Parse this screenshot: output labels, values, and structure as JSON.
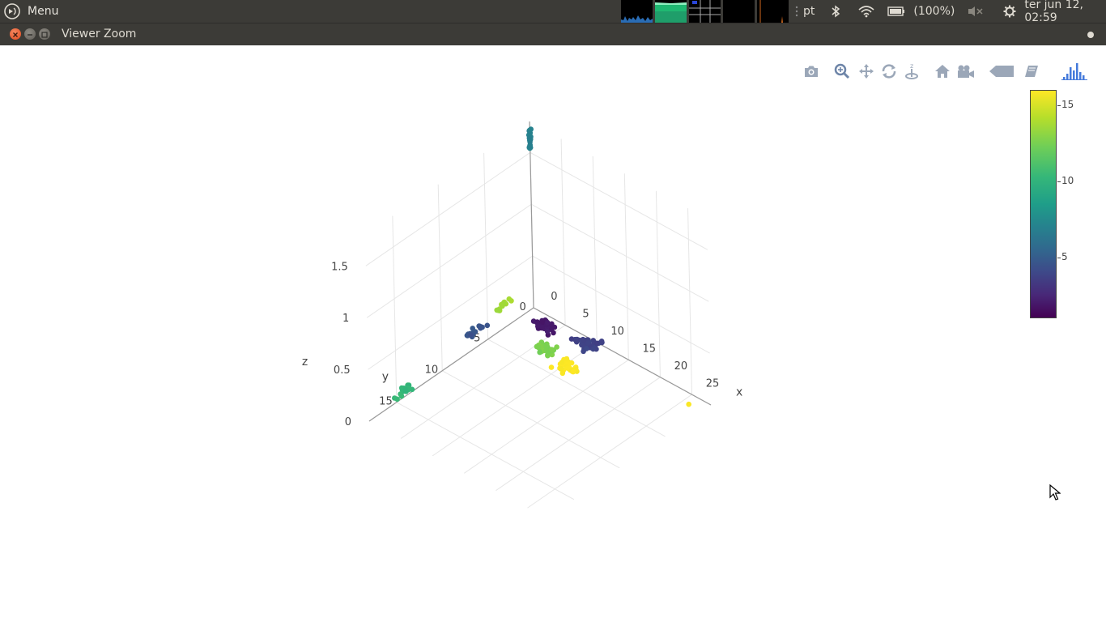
{
  "topbar": {
    "menu_label": "Menu",
    "keyboard_layout": "pt",
    "battery_text": "(100%)",
    "datetime": "ter jun 12, 02:59"
  },
  "window": {
    "title": "Viewer Zoom"
  },
  "modebar": {
    "icons": [
      "camera-icon",
      "zoom-icon",
      "pan-icon",
      "orbit-rotation-icon",
      "turntable-rotation-icon",
      "reset-camera-home-icon",
      "reset-camera-last-save-icon",
      "hover-closest-icon",
      "toggle-spike-lines-icon",
      "plotly-logo-icon"
    ]
  },
  "colorbar": {
    "ticks": [
      "15",
      "10",
      "5"
    ],
    "colorscale": [
      "#440154",
      "#482878",
      "#3e4989",
      "#31688e",
      "#26828e",
      "#1f9e89",
      "#35b779",
      "#6ece58",
      "#b5de2b",
      "#fde725"
    ]
  },
  "chart_data": {
    "type": "scatter",
    "subtype": "scatter3d",
    "xlabel": "x",
    "ylabel": "y",
    "zlabel": "z",
    "x_ticks": [
      "0",
      "5",
      "10",
      "15",
      "20",
      "25"
    ],
    "y_ticks": [
      "0",
      "5",
      "10",
      "15"
    ],
    "z_ticks": [
      "0",
      "0.5",
      "1",
      "1.5"
    ],
    "xlim": [
      0,
      28
    ],
    "ylim": [
      0,
      18
    ],
    "zlim": [
      0,
      1.8
    ],
    "color_range": [
      1,
      16
    ],
    "clusters": [
      {
        "x": 0.3,
        "y": 0.2,
        "z": 1.65,
        "spread": [
          0.3,
          0.2,
          0.28
        ],
        "color_value": 7.5,
        "n": 20
      },
      {
        "x": 0.5,
        "y": 14.5,
        "z": 0.1,
        "spread": [
          0.3,
          1.4,
          0.05
        ],
        "color_value": 11,
        "n": 22
      },
      {
        "x": 0.5,
        "y": 6.5,
        "z": 0.2,
        "spread": [
          0.3,
          1.5,
          0.05
        ],
        "color_value": 5,
        "n": 18
      },
      {
        "x": 1.0,
        "y": 4.0,
        "z": 0.3,
        "spread": [
          0.3,
          1.0,
          0.05
        ],
        "color_value": 14,
        "n": 14
      },
      {
        "x": 4.0,
        "y": 1.5,
        "z": 0.05,
        "spread": [
          2.0,
          1.0,
          0.03
        ],
        "color_value": 2,
        "n": 40
      },
      {
        "x": 7.0,
        "y": 3.5,
        "z": 0.05,
        "spread": [
          1.8,
          1.2,
          0.03
        ],
        "color_value": 13,
        "n": 35
      },
      {
        "x": 10.0,
        "y": 1.0,
        "z": 0.05,
        "spread": [
          2.5,
          1.0,
          0.03
        ],
        "color_value": 4,
        "n": 35
      },
      {
        "x": 11.0,
        "y": 4.0,
        "z": 0.05,
        "spread": [
          2.5,
          1.2,
          0.03
        ],
        "color_value": 16,
        "n": 35
      },
      {
        "x": 26.0,
        "y": 1.0,
        "z": 0.0,
        "spread": [
          0.1,
          0.1,
          0.01
        ],
        "color_value": 16,
        "n": 1
      }
    ]
  }
}
